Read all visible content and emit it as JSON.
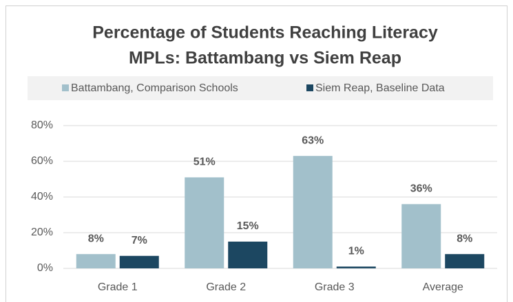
{
  "chart_data": {
    "type": "bar",
    "title": [
      "Percentage of Students Reaching Literacy",
      "MPLs: Battambang vs Siem Reap"
    ],
    "categories": [
      "Grade 1",
      "Grade 2",
      "Grade 3",
      "Average"
    ],
    "series": [
      {
        "name": "Battambang, Comparison Schools",
        "color": "#a2c0cb",
        "values": [
          8,
          51,
          63,
          36
        ],
        "value_labels": [
          "8%",
          "51%",
          "63%",
          "36%"
        ]
      },
      {
        "name": "Siem Reap, Baseline Data",
        "color": "#1c4761",
        "values": [
          7,
          15,
          1,
          8
        ],
        "value_labels": [
          "7%",
          "15%",
          "1%",
          "8%"
        ]
      }
    ],
    "ylim": [
      0,
      80
    ],
    "yticks": [
      {
        "value": 0,
        "label": "0%"
      },
      {
        "value": 20,
        "label": "20%"
      },
      {
        "value": 40,
        "label": "40%"
      },
      {
        "value": 60,
        "label": "60%"
      },
      {
        "value": 80,
        "label": "80%"
      }
    ],
    "grid": true,
    "legend": "top"
  }
}
